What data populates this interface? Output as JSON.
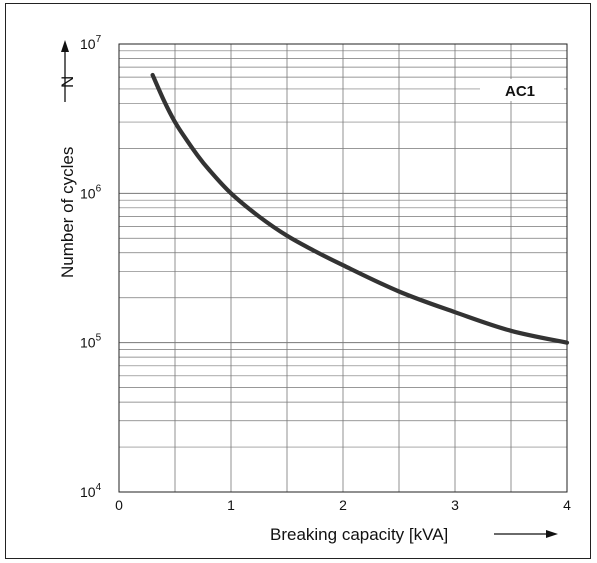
{
  "chart_data": {
    "type": "line",
    "title": "",
    "annotation": "AC1",
    "xlabel": "Breaking capacity [kVA]",
    "ylabel": "Number of cycles",
    "ysymbol": "N",
    "xlim": [
      0,
      4
    ],
    "ylim": [
      10000,
      10000000
    ],
    "yscale": "log",
    "grid": true,
    "x_ticks": [
      "0",
      "1",
      "2",
      "3",
      "4"
    ],
    "y_ticks": [
      {
        "base": "10",
        "exp": "4"
      },
      {
        "base": "10",
        "exp": "5"
      },
      {
        "base": "10",
        "exp": "6"
      },
      {
        "base": "10",
        "exp": "7"
      }
    ],
    "series": [
      {
        "color": "#333333",
        "x": [
          0.3,
          0.4,
          0.5,
          0.6,
          0.7,
          0.8,
          1.0,
          1.25,
          1.5,
          1.75,
          2.0,
          2.5,
          3.0,
          3.5,
          4.0
        ],
        "y": [
          6200000,
          4200000,
          3000000,
          2300000,
          1800000,
          1450000,
          1000000,
          700000,
          520000,
          410000,
          330000,
          220000,
          160000,
          120000,
          100000
        ]
      }
    ]
  }
}
